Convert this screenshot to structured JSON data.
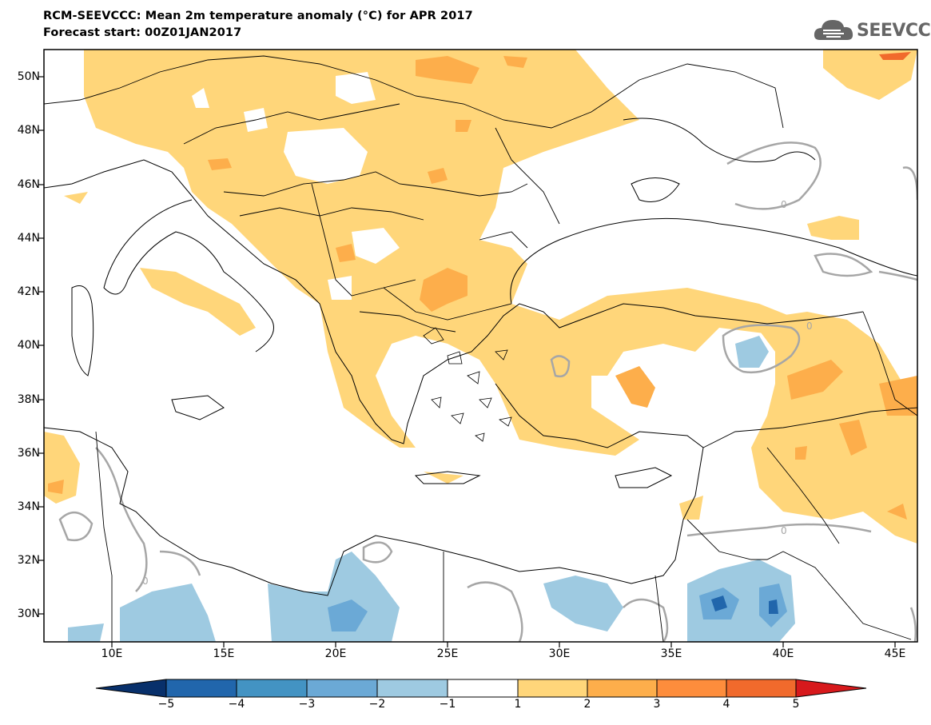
{
  "title": {
    "line1": "RCM-SEEVCCC: Mean 2m temperature anomaly (°C) for APR 2017",
    "line2": "Forecast start: 00Z01JAN2017"
  },
  "logo": {
    "text": "SEEVCCC",
    "icon": "cloud-icon"
  },
  "map": {
    "extent": {
      "lon": [
        7,
        46
      ],
      "lat": [
        29,
        51
      ]
    },
    "lat_ticks": [
      "30N",
      "32N",
      "34N",
      "36N",
      "38N",
      "40N",
      "42N",
      "44N",
      "46N",
      "48N",
      "50N"
    ],
    "lon_ticks": [
      "10E",
      "15E",
      "20E",
      "25E",
      "30E",
      "35E",
      "40E",
      "45E"
    ],
    "contour_labels": [
      "0",
      "0",
      "0",
      "0"
    ]
  },
  "colorbar": {
    "labels": [
      "−5",
      "−4",
      "−3",
      "−2",
      "−1",
      "1",
      "2",
      "3",
      "4",
      "5"
    ],
    "colors": [
      "#08306b",
      "#2166ac",
      "#4393c3",
      "#6ba9d6",
      "#9ecae1",
      "#ffffff",
      "#ffd67a",
      "#fdae4b",
      "#fd8d3c",
      "#f16a2c",
      "#d7191c"
    ]
  }
}
